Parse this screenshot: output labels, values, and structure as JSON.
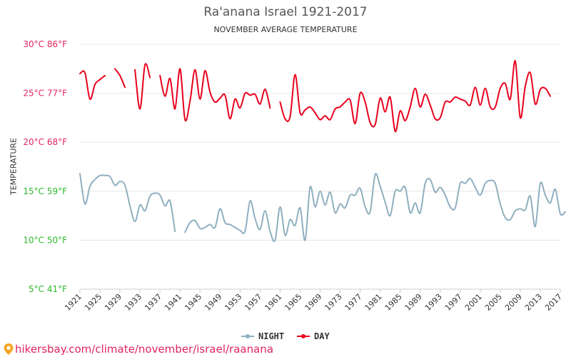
{
  "header": {
    "title": "Ra'anana Israel 1921-2017",
    "subtitle": "NOVEMBER AVERAGE TEMPERATURE"
  },
  "footer": {
    "credit": "hikersbay.com/climate/november/israel/raanana",
    "credit_icon": "map-pin-icon"
  },
  "colors": {
    "day": "#e8001c",
    "night": "#8fafbf",
    "grid": "#e6e6e6",
    "ytick_day": "#e0245e",
    "ytick_night": "#2db82d",
    "credit": "#e0245e"
  },
  "chart_data": {
    "type": "line",
    "title": "Ra'anana Israel 1921-2017",
    "subtitle": "NOVEMBER AVERAGE TEMPERATURE",
    "ylabel": "TEMPERATURE",
    "xlabel": "",
    "ylim": [
      5,
      30
    ],
    "xlim": [
      1921,
      2017
    ],
    "grid": true,
    "legend": "bottom-center",
    "yticks": [
      {
        "value": 30,
        "c": "30°C",
        "f": "86°F"
      },
      {
        "value": 25,
        "c": "25°C",
        "f": "77°F"
      },
      {
        "value": 20,
        "c": "20°C",
        "f": "68°F"
      },
      {
        "value": 15,
        "c": "15°C",
        "f": "59°F"
      },
      {
        "value": 10,
        "c": "10°C",
        "f": "50°F"
      },
      {
        "value": 5,
        "c": "5°C",
        "f": "41°F"
      }
    ],
    "xticks": [
      1921,
      1925,
      1929,
      1933,
      1937,
      1941,
      1945,
      1949,
      1953,
      1957,
      1961,
      1965,
      1969,
      1973,
      1977,
      1981,
      1985,
      1989,
      1993,
      1997,
      2001,
      2005,
      2009,
      2013,
      2017
    ],
    "series": [
      {
        "name": "NIGHT",
        "color": "#8fafbf",
        "points": [
          [
            1921,
            16.8
          ],
          [
            1922,
            13.7
          ],
          [
            1923,
            15.5
          ],
          [
            1924,
            16.2
          ],
          [
            1925,
            16.6
          ],
          [
            1926,
            16.6
          ],
          [
            1927,
            16.5
          ],
          [
            1928,
            15.6
          ],
          [
            1929,
            16.0
          ],
          [
            1930,
            15.6
          ],
          [
            1931,
            13.5
          ],
          [
            1932,
            11.9
          ],
          [
            1933,
            13.6
          ],
          [
            1934,
            13.0
          ],
          [
            1935,
            14.5
          ],
          [
            1936,
            14.8
          ],
          [
            1937,
            14.6
          ],
          [
            1938,
            13.5
          ],
          [
            1939,
            14.0
          ],
          [
            1940,
            10.9
          ],
          null,
          [
            1942,
            10.8
          ],
          [
            1943,
            11.8
          ],
          [
            1944,
            12.0
          ],
          [
            1945,
            11.2
          ],
          [
            1946,
            11.3
          ],
          [
            1947,
            11.6
          ],
          [
            1948,
            11.3
          ],
          [
            1949,
            13.2
          ],
          [
            1950,
            11.8
          ],
          [
            1951,
            11.6
          ],
          [
            1952,
            11.3
          ],
          [
            1953,
            11.0
          ],
          [
            1954,
            10.9
          ],
          [
            1955,
            14.0
          ],
          [
            1956,
            12.2
          ],
          [
            1957,
            11.1
          ],
          [
            1958,
            13.0
          ],
          [
            1959,
            10.9
          ],
          [
            1960,
            10.0
          ],
          [
            1961,
            13.4
          ],
          [
            1962,
            10.5
          ],
          [
            1963,
            12.1
          ],
          [
            1964,
            11.5
          ],
          [
            1965,
            13.3
          ],
          [
            1966,
            10.0
          ],
          [
            1967,
            15.4
          ],
          [
            1968,
            13.4
          ],
          [
            1969,
            15.0
          ],
          [
            1970,
            13.6
          ],
          [
            1971,
            14.9
          ],
          [
            1972,
            12.8
          ],
          [
            1973,
            13.7
          ],
          [
            1974,
            13.3
          ],
          [
            1975,
            14.6
          ],
          [
            1976,
            14.6
          ],
          [
            1977,
            15.3
          ],
          [
            1978,
            13.4
          ],
          [
            1979,
            12.9
          ],
          [
            1980,
            16.7
          ],
          [
            1981,
            15.5
          ],
          [
            1982,
            13.9
          ],
          [
            1983,
            12.5
          ],
          [
            1984,
            15.0
          ],
          [
            1985,
            15.0
          ],
          [
            1986,
            15.4
          ],
          [
            1987,
            12.8
          ],
          [
            1988,
            13.8
          ],
          [
            1989,
            12.8
          ],
          [
            1990,
            15.8
          ],
          [
            1991,
            16.2
          ],
          [
            1992,
            14.9
          ],
          [
            1993,
            15.4
          ],
          [
            1994,
            14.6
          ],
          [
            1995,
            13.4
          ],
          [
            1996,
            13.3
          ],
          [
            1997,
            15.8
          ],
          [
            1998,
            15.8
          ],
          [
            1999,
            16.3
          ],
          [
            2000,
            15.4
          ],
          [
            2001,
            14.6
          ],
          [
            2002,
            15.8
          ],
          [
            2003,
            16.1
          ],
          [
            2004,
            15.8
          ],
          [
            2005,
            13.7
          ],
          [
            2006,
            12.3
          ],
          [
            2007,
            12.1
          ],
          [
            2008,
            13.0
          ],
          [
            2009,
            13.2
          ],
          [
            2010,
            13.1
          ],
          [
            2011,
            14.5
          ],
          [
            2012,
            11.4
          ],
          [
            2013,
            15.8
          ],
          [
            2014,
            14.6
          ],
          [
            2015,
            13.8
          ],
          [
            2016,
            15.2
          ],
          [
            2017,
            12.7
          ],
          [
            2018,
            12.9
          ]
        ]
      },
      {
        "name": "DAY",
        "color": "#e8001c",
        "points": [
          [
            1921,
            27.0
          ],
          [
            1922,
            27.1
          ],
          [
            1923,
            24.4
          ],
          [
            1924,
            25.9
          ],
          [
            1925,
            26.4
          ],
          [
            1926,
            26.8
          ],
          null,
          [
            1928,
            27.5
          ],
          [
            1929,
            26.8
          ],
          [
            1930,
            25.6
          ],
          null,
          [
            1932,
            27.4
          ],
          [
            1933,
            23.4
          ],
          [
            1934,
            27.9
          ],
          [
            1935,
            26.6
          ],
          null,
          [
            1937,
            26.8
          ],
          [
            1938,
            24.7
          ],
          [
            1939,
            26.5
          ],
          [
            1940,
            23.4
          ],
          [
            1941,
            27.5
          ],
          [
            1942,
            22.3
          ],
          [
            1943,
            24.2
          ],
          [
            1944,
            27.4
          ],
          [
            1945,
            24.4
          ],
          [
            1946,
            27.3
          ],
          [
            1947,
            25.1
          ],
          [
            1948,
            24.1
          ],
          [
            1949,
            24.5
          ],
          [
            1950,
            24.8
          ],
          [
            1951,
            22.4
          ],
          [
            1952,
            24.4
          ],
          [
            1953,
            23.5
          ],
          [
            1954,
            25.0
          ],
          [
            1955,
            24.8
          ],
          [
            1956,
            24.9
          ],
          [
            1957,
            23.9
          ],
          [
            1958,
            25.4
          ],
          [
            1959,
            23.5
          ],
          null,
          [
            1961,
            24.1
          ],
          [
            1962,
            22.4
          ],
          [
            1963,
            22.6
          ],
          [
            1964,
            26.9
          ],
          [
            1965,
            23.0
          ],
          [
            1966,
            23.3
          ],
          [
            1967,
            23.6
          ],
          [
            1968,
            23.0
          ],
          [
            1969,
            22.3
          ],
          [
            1970,
            22.7
          ],
          [
            1971,
            22.3
          ],
          [
            1972,
            23.4
          ],
          [
            1973,
            23.6
          ],
          [
            1974,
            24.1
          ],
          [
            1975,
            24.3
          ],
          [
            1976,
            21.9
          ],
          [
            1977,
            25.0
          ],
          [
            1978,
            24.1
          ],
          [
            1979,
            22.0
          ],
          [
            1980,
            21.8
          ],
          [
            1981,
            24.5
          ],
          [
            1982,
            23.1
          ],
          [
            1983,
            24.6
          ],
          [
            1984,
            21.1
          ],
          [
            1985,
            23.2
          ],
          [
            1986,
            22.2
          ],
          [
            1987,
            23.6
          ],
          [
            1988,
            25.5
          ],
          [
            1989,
            23.6
          ],
          [
            1990,
            24.9
          ],
          [
            1991,
            23.8
          ],
          [
            1992,
            22.4
          ],
          [
            1993,
            22.5
          ],
          [
            1994,
            24.1
          ],
          [
            1995,
            24.1
          ],
          [
            1996,
            24.6
          ],
          [
            1997,
            24.4
          ],
          [
            1998,
            24.2
          ],
          [
            1999,
            23.8
          ],
          [
            2000,
            25.6
          ],
          [
            2001,
            23.8
          ],
          [
            2002,
            25.5
          ],
          [
            2003,
            23.6
          ],
          [
            2004,
            23.6
          ],
          [
            2005,
            25.5
          ],
          [
            2006,
            26.0
          ],
          [
            2007,
            24.4
          ],
          [
            2008,
            28.3
          ],
          [
            2009,
            22.5
          ],
          [
            2010,
            25.7
          ],
          [
            2011,
            27.1
          ],
          [
            2012,
            23.9
          ],
          [
            2013,
            25.4
          ],
          [
            2014,
            25.5
          ],
          [
            2015,
            24.7
          ]
        ]
      }
    ]
  }
}
